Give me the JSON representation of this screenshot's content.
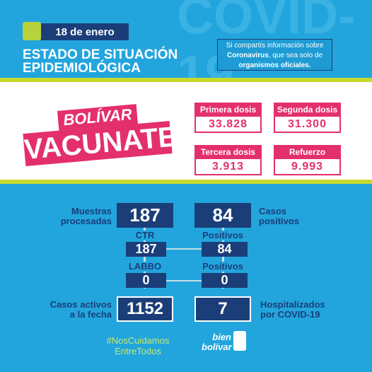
{
  "header": {
    "watermark": "COVID-19",
    "date": "18 de enero",
    "title": [
      "ESTADO DE SITUACIÓN",
      "EPIDEMIOLÓGICA"
    ],
    "notice": {
      "line1": "Si compartís información sobre",
      "bold1": "Coronavirus",
      "line2": ", que sea solo de",
      "bold2": "organismos oficiales."
    }
  },
  "campaign": {
    "town": "BOLÍVAR",
    "slogan": "VACUNATE"
  },
  "vaccines": [
    {
      "label": "Primera dosis",
      "value": "33.828"
    },
    {
      "label": "Segunda dosis",
      "value": "31.300"
    },
    {
      "label": "Tercera dosis",
      "value": "3.913"
    },
    {
      "label": "Refuerzo",
      "value": "9.993"
    }
  ],
  "stats": {
    "samples": {
      "label": [
        "Muestras",
        "procesadas"
      ],
      "value": "187"
    },
    "positives": {
      "label": [
        "Casos",
        "positivos"
      ],
      "value": "84"
    },
    "ctr": {
      "label": "CTR",
      "samples": "187",
      "positives_label": "Positivos",
      "positives": "84"
    },
    "labbo": {
      "label": "LABBO",
      "samples": "0",
      "positives_label": "Positivos",
      "positives": "0"
    },
    "active": {
      "label": [
        "Casos activos",
        "a la fecha"
      ],
      "value": "1152"
    },
    "hospitalized": {
      "label": [
        "Hospitalizados",
        "por COVID-19"
      ],
      "value": "7"
    }
  },
  "footer": {
    "hashtag": [
      "#NosCuidamos",
      "EntreTodos"
    ],
    "logo": [
      "bien",
      "bolívar"
    ]
  }
}
